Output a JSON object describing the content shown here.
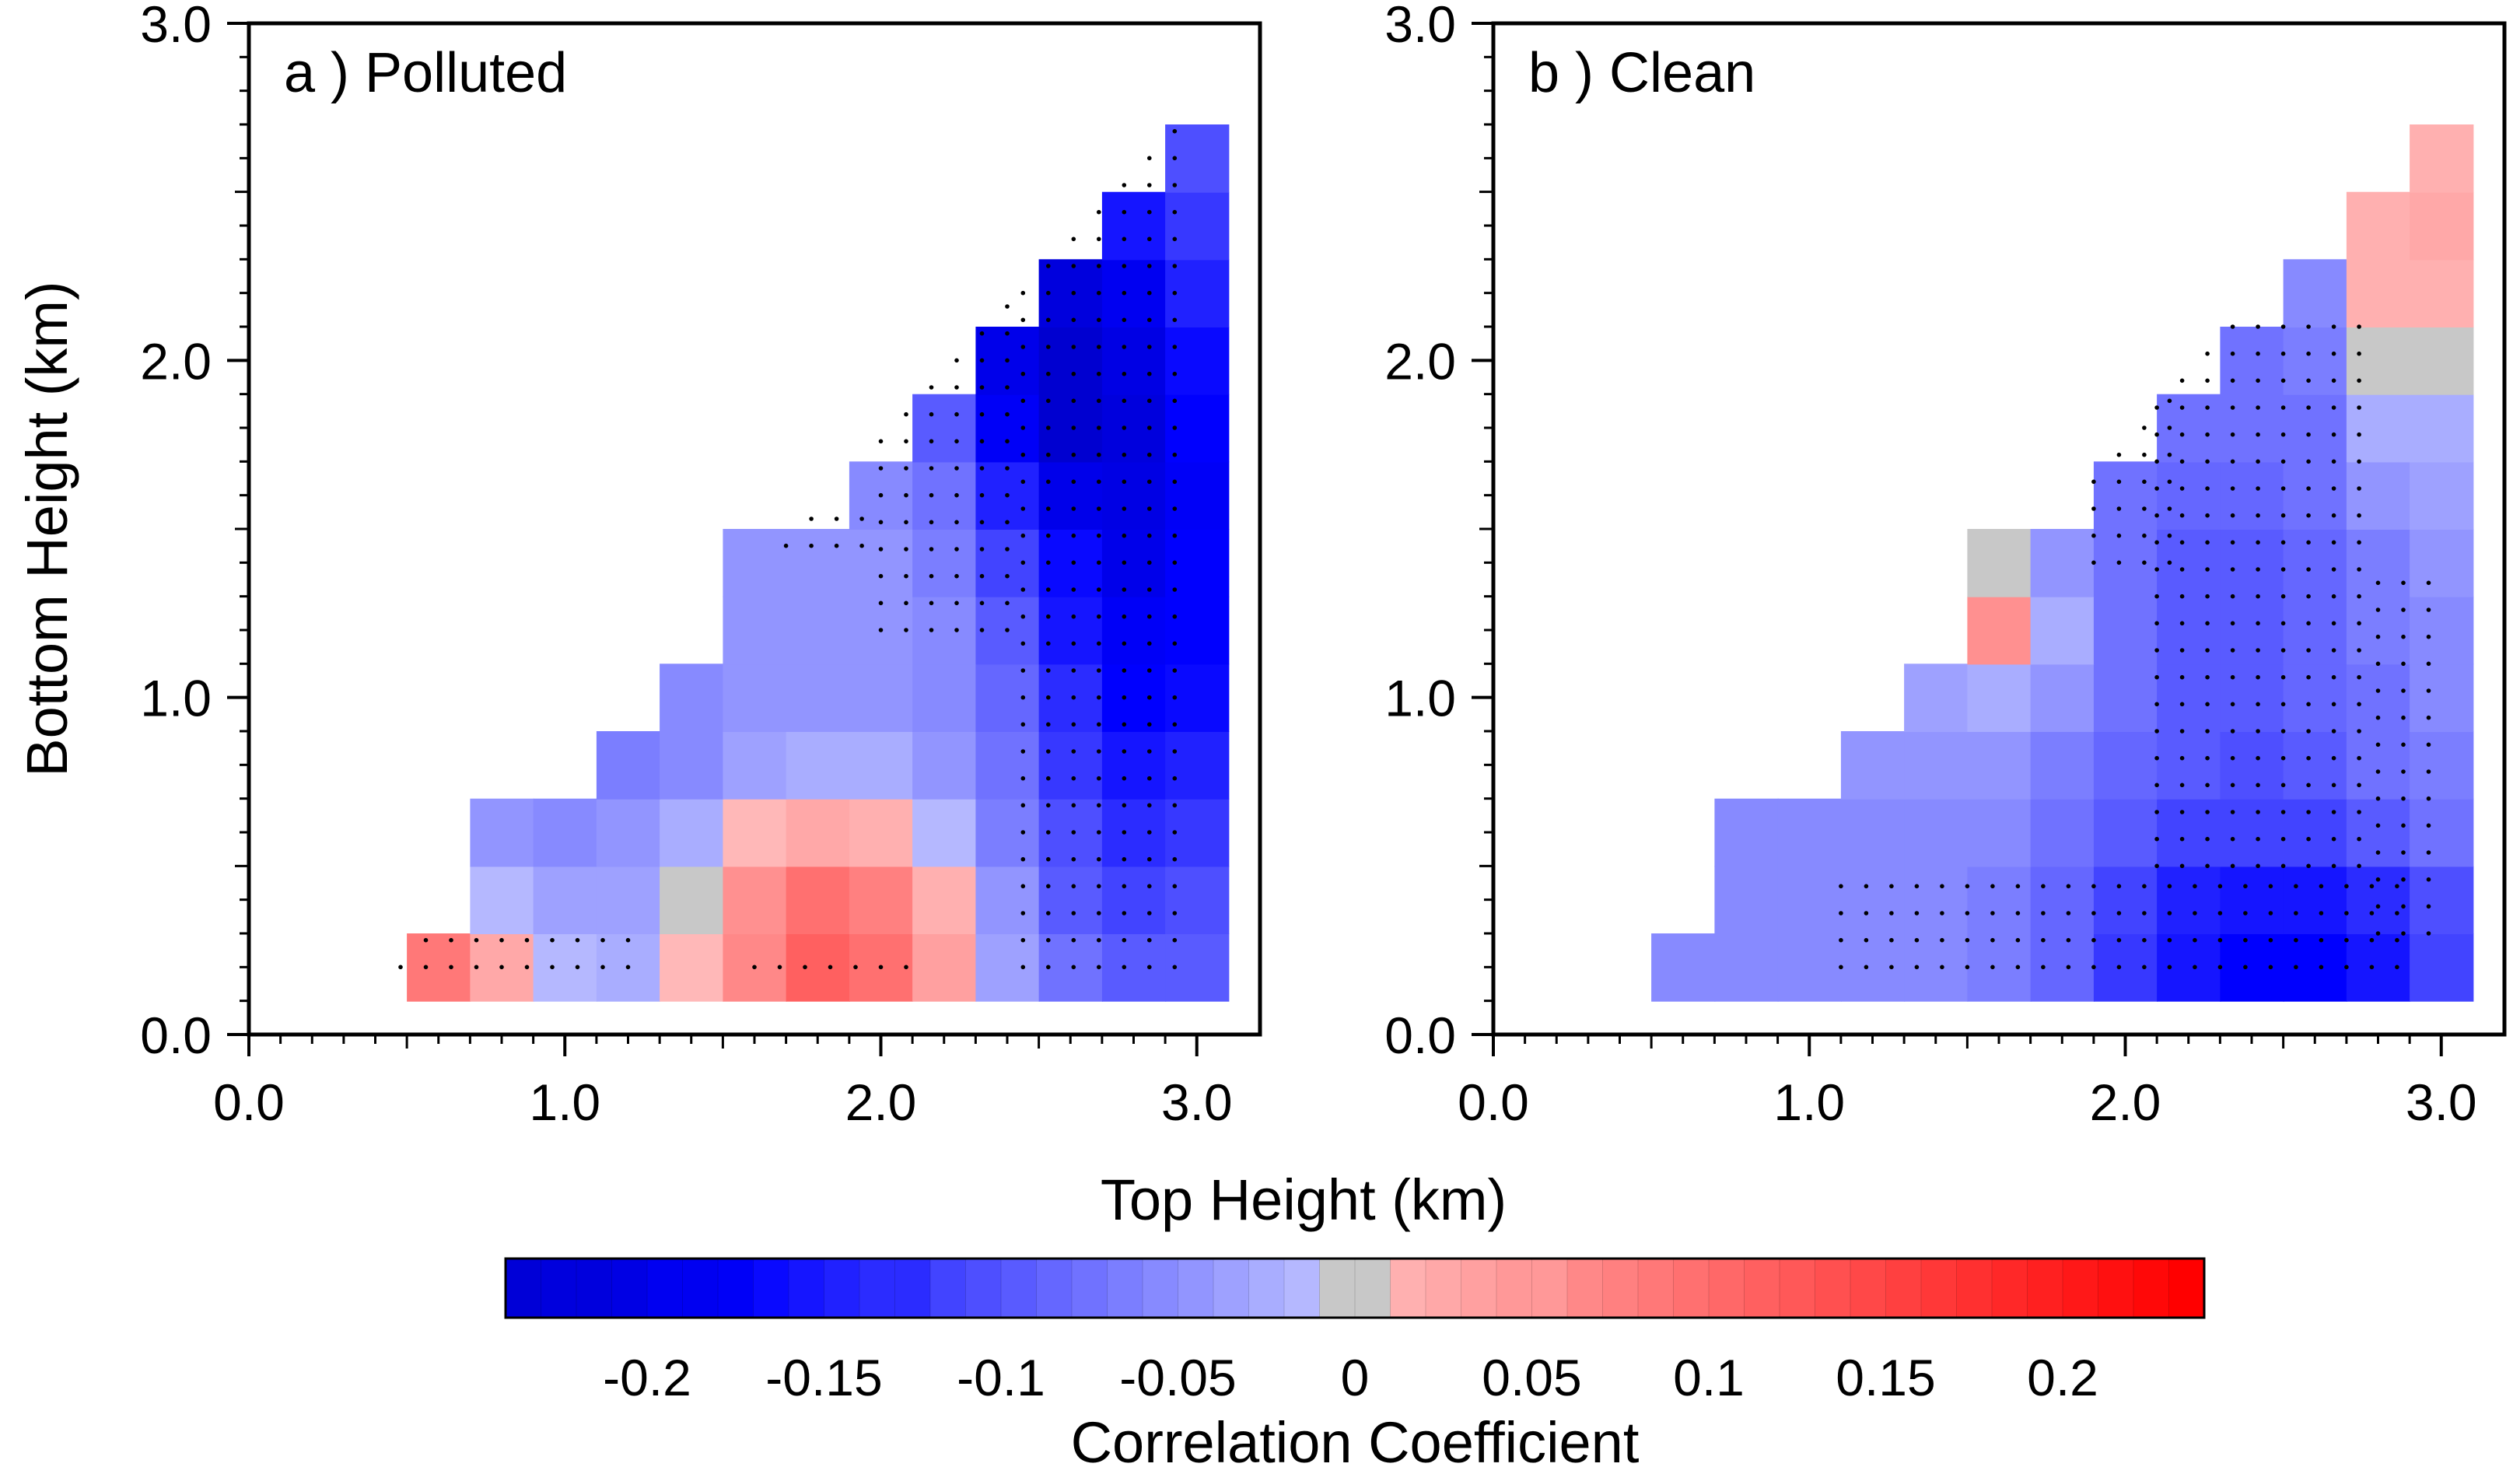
{
  "chart_data": {
    "type": "heatmap",
    "shared": {
      "xlabel": "Top Height  (km)",
      "ylabel": "Bottom Height  (km)",
      "xlim": [
        0,
        3.2
      ],
      "ylim": [
        0,
        3.0
      ],
      "ticks": [
        0.0,
        1.0,
        2.0,
        3.0
      ],
      "tick_labels": [
        "0.0",
        "1.0",
        "2.0",
        "3.0"
      ],
      "grid_x": [
        0.4,
        0.6,
        0.8,
        1.0,
        1.2,
        1.4,
        1.6,
        1.8,
        2.0,
        2.2,
        2.4,
        2.6,
        2.8,
        3.0
      ],
      "grid_y": [
        0.2,
        0.4,
        0.6,
        0.8,
        1.0,
        1.2,
        1.4,
        1.6,
        1.8,
        2.0,
        2.2,
        2.4,
        2.6,
        2.8
      ],
      "grid": false
    },
    "panels": [
      {
        "label": "a ) Polluted",
        "blobs": [
          {
            "x": 1.85,
            "y": 0.25,
            "v": 0.14,
            "sx": 0.3,
            "sy": 0.28
          },
          {
            "x": 0.45,
            "y": 0.2,
            "v": 0.12,
            "sx": 0.3,
            "sy": 0.15
          },
          {
            "x": 1.15,
            "y": 0.85,
            "v": -0.06,
            "sx": 0.35,
            "sy": 0.25
          },
          {
            "x": 2.85,
            "y": 1.5,
            "v": -0.21,
            "sx": 0.3,
            "sy": 0.9
          },
          {
            "x": 2.5,
            "y": 2.0,
            "v": -0.19,
            "sx": 0.2,
            "sy": 0.3
          }
        ],
        "bias": -0.04,
        "stipple": [
          {
            "x0": 0.4,
            "x1": 1.2,
            "y0": 0.2,
            "y1": 0.35
          },
          {
            "x0": 1.6,
            "x1": 2.1,
            "y0": 0.2,
            "y1": 0.22
          },
          {
            "x0": 2.45,
            "x1": 3.0,
            "y0": 0.2,
            "y1": 2.8
          },
          {
            "x0": 2.0,
            "x1": 2.45,
            "y0": 1.2,
            "y1": 2.3
          },
          {
            "x0": 1.7,
            "x1": 2.0,
            "y0": 1.45,
            "y1": 1.6
          }
        ]
      },
      {
        "label": "b ) Clean",
        "blobs": [
          {
            "x": 2.55,
            "y": 0.2,
            "v": -0.16,
            "sx": 0.45,
            "sy": 0.25
          },
          {
            "x": 2.3,
            "y": 1.0,
            "v": -0.1,
            "sx": 0.4,
            "sy": 0.8
          },
          {
            "x": 2.9,
            "y": 2.4,
            "v": 0.07,
            "sx": 0.12,
            "sy": 0.5
          },
          {
            "x": 1.55,
            "y": 1.25,
            "v": 0.06,
            "sx": 0.12,
            "sy": 0.1
          },
          {
            "x": 1.65,
            "y": 1.15,
            "v": 0.0,
            "sx": 0.25,
            "sy": 0.25
          }
        ],
        "bias": -0.045,
        "stipple": [
          {
            "x0": 1.1,
            "x1": 2.9,
            "y0": 0.2,
            "y1": 0.5
          },
          {
            "x0": 2.1,
            "x1": 2.8,
            "y0": 0.5,
            "y1": 2.1
          },
          {
            "x0": 1.9,
            "x1": 2.2,
            "y0": 1.4,
            "y1": 1.9
          },
          {
            "x0": 2.8,
            "x1": 3.0,
            "y0": 0.3,
            "y1": 1.4
          }
        ]
      }
    ],
    "colorbar": {
      "label": "Correlation Coefficient",
      "min": -0.24,
      "max": 0.24,
      "step": 0.01,
      "neutral_band": [
        -0.005,
        0.005
      ],
      "ticks": [
        -0.2,
        -0.15,
        -0.1,
        -0.05,
        0,
        0.05,
        0.1,
        0.15,
        0.2
      ],
      "tick_labels": [
        "-0.2",
        "-0.15",
        "-0.1",
        "-0.05",
        "0",
        "0.05",
        "0.1",
        "0.15",
        "0.2"
      ],
      "colors": {
        "neg_end": "#0000d0",
        "neg_mid": "#0000ff",
        "neutral": "#c8c8c8",
        "pos_end": "#ff0000",
        "pos_light": "#ffc0c0",
        "neg_light": "#c0c4ff"
      }
    }
  }
}
